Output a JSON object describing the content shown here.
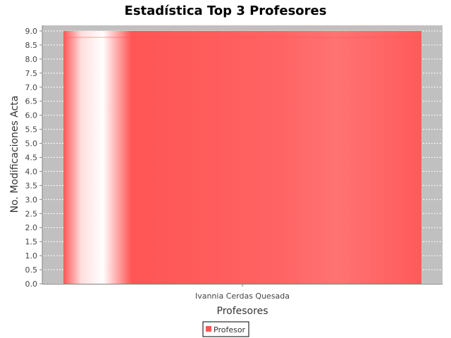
{
  "chart_data": {
    "type": "bar",
    "title": "Estadística Top 3 Profesores",
    "xlabel": "Profesores",
    "ylabel": "No. Modificaciones Acta",
    "categories": [
      "Ivannia Cerdas Quesada"
    ],
    "series": [
      {
        "name": "Profesor",
        "values": [
          9.0
        ],
        "color": "#ff5555"
      }
    ],
    "ylim": [
      0,
      9.2
    ],
    "yticks": [
      "0.0",
      "0.5",
      "1.0",
      "1.5",
      "2.0",
      "2.5",
      "3.0",
      "3.5",
      "4.0",
      "4.5",
      "5.0",
      "5.5",
      "6.0",
      "6.5",
      "7.0",
      "7.5",
      "8.0",
      "8.5",
      "9.0"
    ],
    "grid": true,
    "legend_position": "bottom",
    "plot_background": "#c0c0c0",
    "gridline_color": "#ffffff"
  }
}
